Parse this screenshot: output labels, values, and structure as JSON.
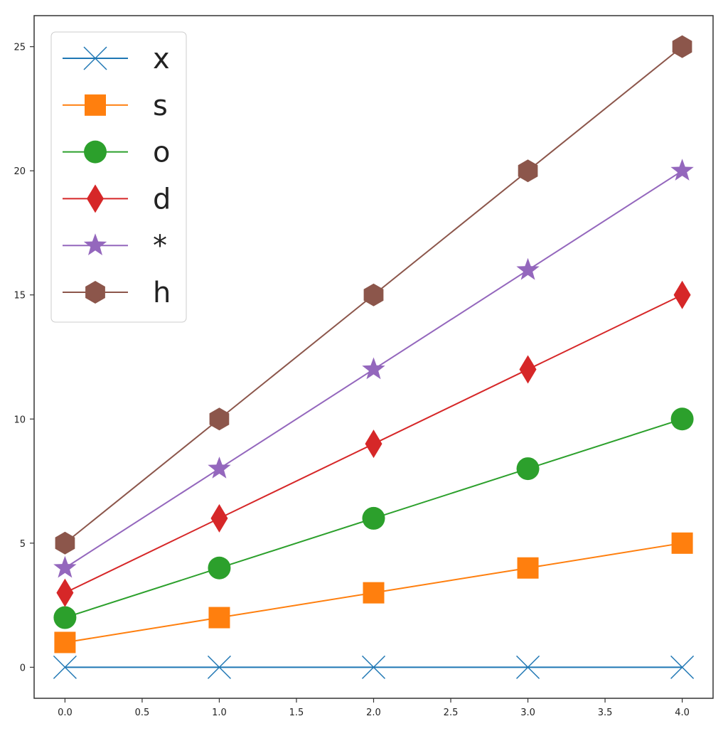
{
  "chart_data": {
    "type": "line",
    "title": "",
    "xlabel": "",
    "ylabel": "",
    "x": [
      0,
      1,
      2,
      3,
      4
    ],
    "xlim": [
      -0.2,
      4.2
    ],
    "ylim": [
      -1.25,
      26.25
    ],
    "xticks": [
      "0.0",
      "0.5",
      "1.0",
      "1.5",
      "2.0",
      "2.5",
      "3.0",
      "3.5",
      "4.0"
    ],
    "xtick_values": [
      0,
      0.5,
      1,
      1.5,
      2,
      2.5,
      3,
      3.5,
      4
    ],
    "yticks": [
      "0",
      "5",
      "10",
      "15",
      "20",
      "25"
    ],
    "ytick_values": [
      0,
      5,
      10,
      15,
      20,
      25
    ],
    "grid": false,
    "legend_position": "top-left",
    "series": [
      {
        "name": "x",
        "marker": "x",
        "color": "#1f77b4",
        "values": [
          0,
          0,
          0,
          0,
          0
        ]
      },
      {
        "name": "s",
        "marker": "square",
        "color": "#ff7f0e",
        "values": [
          1,
          2,
          3,
          4,
          5
        ]
      },
      {
        "name": "o",
        "marker": "circle",
        "color": "#2ca02c",
        "values": [
          2,
          4,
          6,
          8,
          10
        ]
      },
      {
        "name": "d",
        "marker": "diamond",
        "color": "#d62728",
        "values": [
          3,
          6,
          9,
          12,
          15
        ]
      },
      {
        "name": "*",
        "marker": "star",
        "color": "#9467bd",
        "values": [
          4,
          8,
          12,
          16,
          20
        ]
      },
      {
        "name": "h",
        "marker": "hexagon",
        "color": "#8c564b",
        "values": [
          5,
          10,
          15,
          20,
          25
        ]
      }
    ]
  }
}
